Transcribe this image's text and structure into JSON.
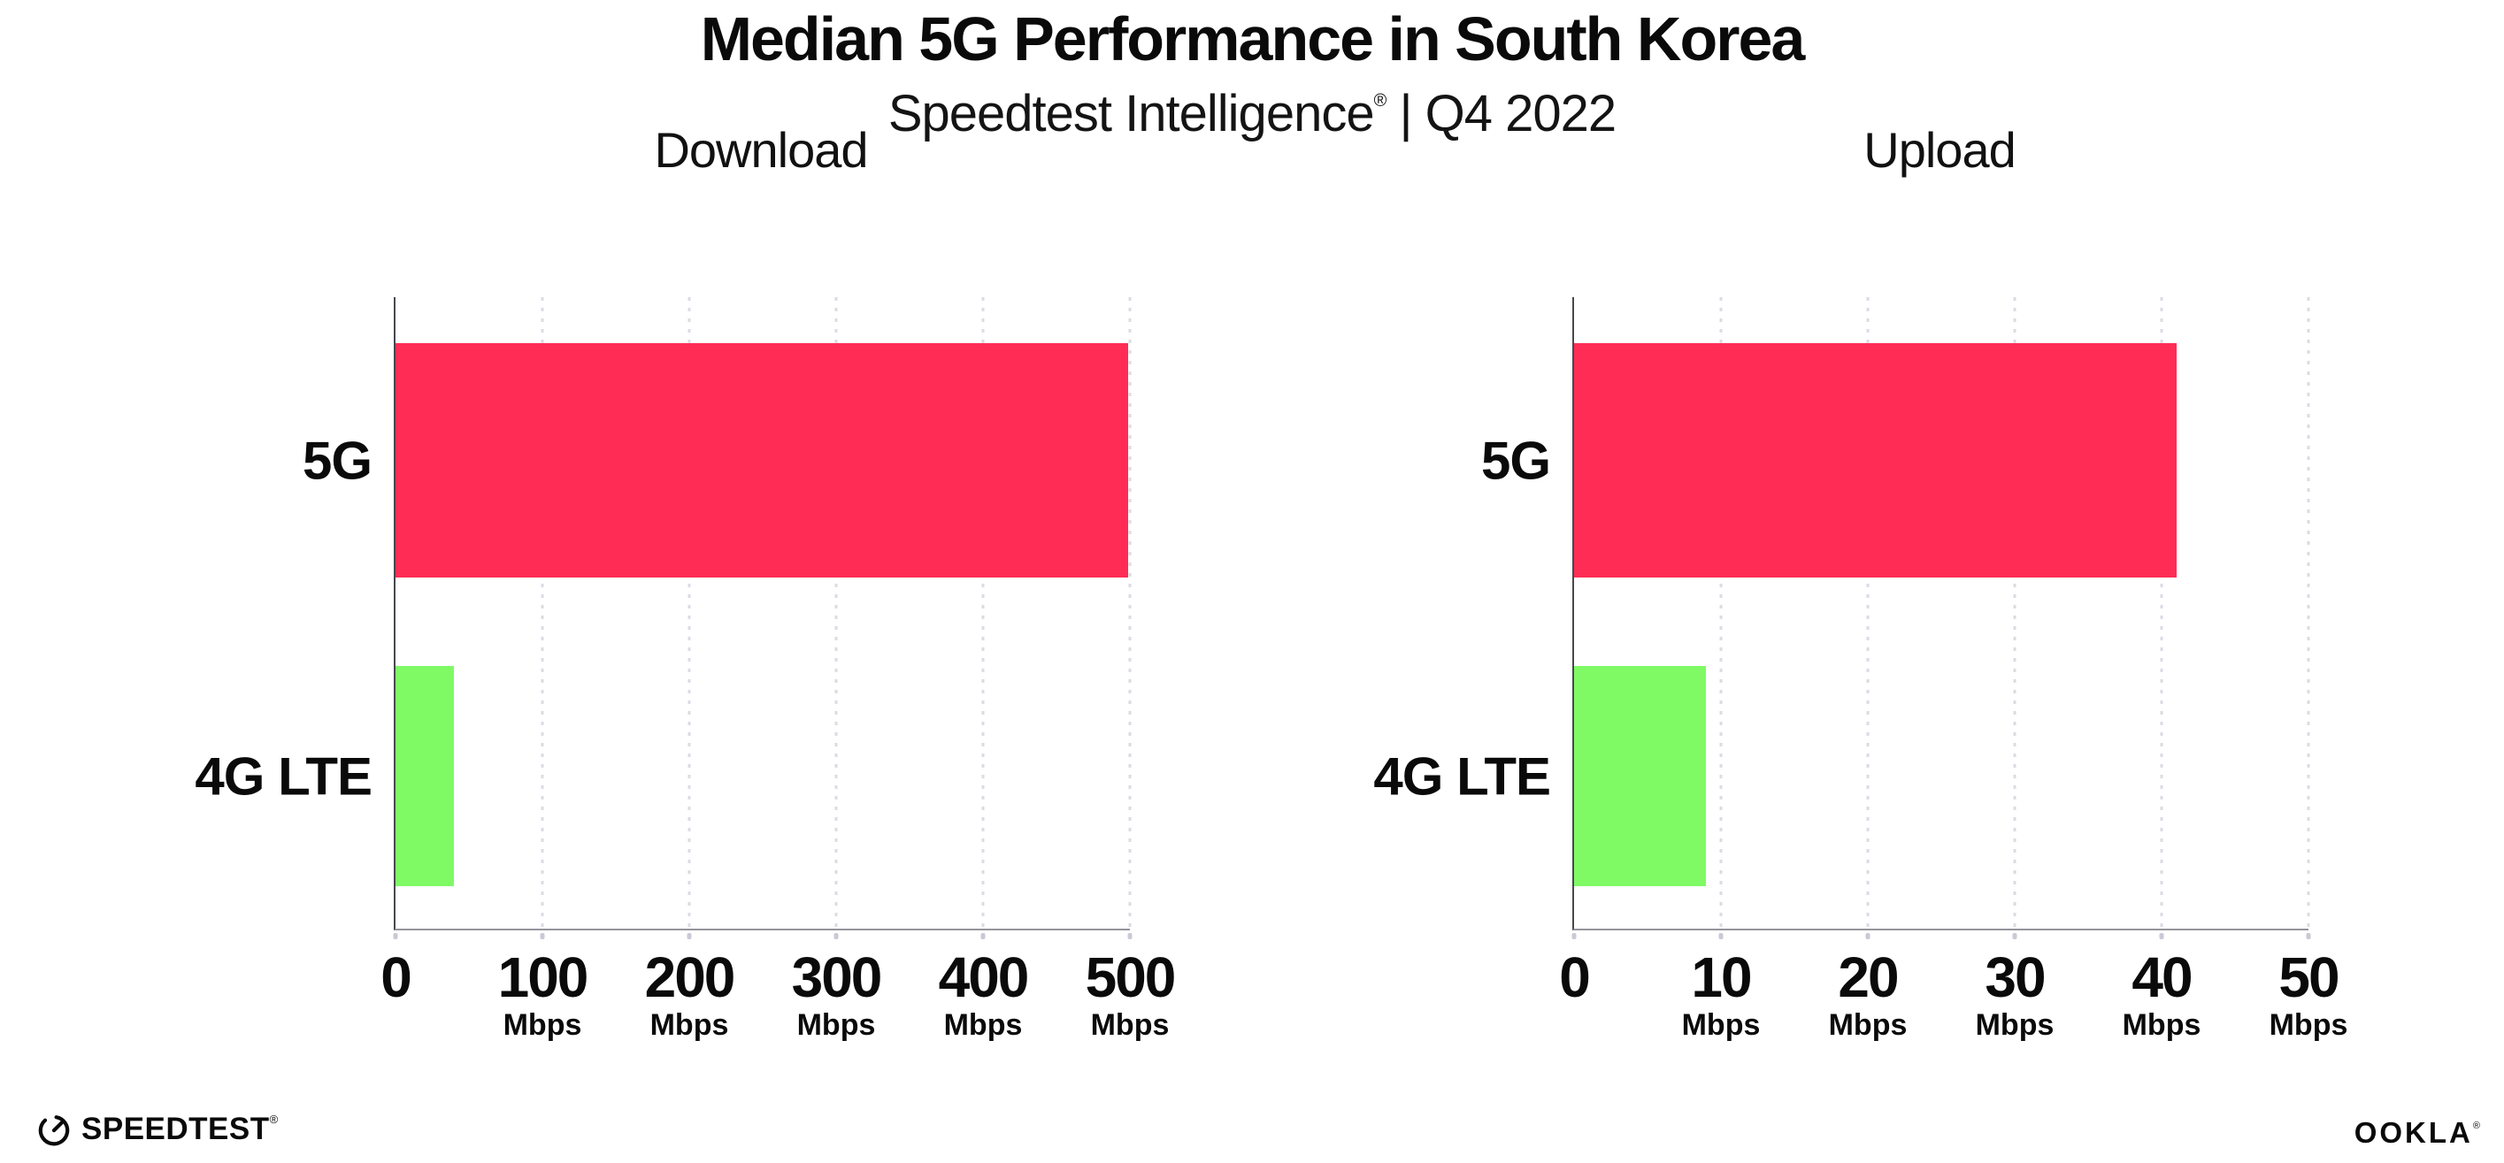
{
  "header": {
    "title": "Median 5G Performance in South Korea",
    "subtitle_brand": "Speedtest Intelligence",
    "subtitle_mark": "®",
    "subtitle_rest": " | Q4 2022"
  },
  "footer": {
    "speedtest_logo_text": "SPEEDTEST",
    "speedtest_mark": "®",
    "ookla_logo_text": "OOKLA",
    "ookla_mark": "®"
  },
  "colors": {
    "bar_5g": "#FF2D55",
    "bar_4g": "#7FFA65",
    "gridline": "#DBDBE5",
    "axis_line": "#94949C",
    "spine": "#47474F",
    "tick_dot": "#C9CAD6",
    "text": "#0A0A0A"
  },
  "chart_data": [
    {
      "type": "bar",
      "orientation": "horizontal",
      "title": "Download",
      "categories": [
        "5G",
        "4G LTE"
      ],
      "values": [
        499,
        40
      ],
      "unit": "Mbps",
      "xlim": [
        0,
        500
      ],
      "xticks": [
        0,
        100,
        200,
        300,
        400,
        500
      ],
      "bar_colors": [
        "#FF2D55",
        "#7FFA65"
      ],
      "grid": "vertical-dotted",
      "legend": "none"
    },
    {
      "type": "bar",
      "orientation": "horizontal",
      "title": "Upload",
      "categories": [
        "5G",
        "4G LTE"
      ],
      "values": [
        41,
        9
      ],
      "unit": "Mbps",
      "xlim": [
        0,
        50
      ],
      "xticks": [
        0,
        10,
        20,
        30,
        40,
        50
      ],
      "bar_colors": [
        "#FF2D55",
        "#7FFA65"
      ],
      "grid": "vertical-dotted",
      "legend": "none"
    }
  ]
}
